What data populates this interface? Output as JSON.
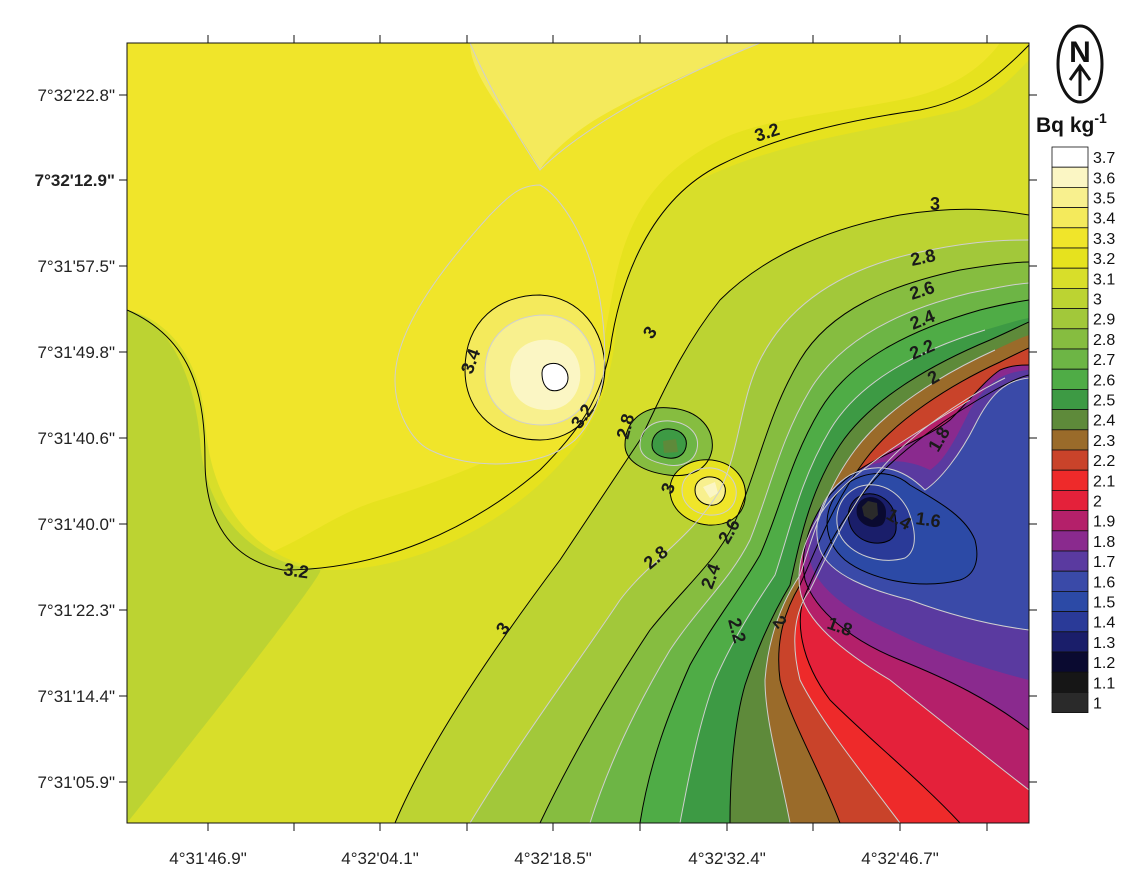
{
  "chart_data": {
    "type": "contour",
    "unit_label": "Bq kg",
    "unit_superscript": "-1",
    "north_arrow": "N",
    "x_tick_labels": [
      "4°31'46.9\"",
      "4°32'04.1\"",
      "4°32'18.5\"",
      "4°32'32.4\"",
      "4°32'46.7\""
    ],
    "y_tick_labels": [
      "7°32'22.8\"",
      "7°32'12.9\"",
      "7°31'57.5\"",
      "7°31'49.8\"",
      "7°31'40.6\"",
      "7°31'40.0\"",
      "7°31'22.3\"",
      "7°31'14.4\"",
      "7°31'05.9\""
    ],
    "legend": [
      {
        "value": "3.7",
        "color": "#ffffff"
      },
      {
        "value": "3.6",
        "color": "#fbf6c4"
      },
      {
        "value": "3.5",
        "color": "#f8f08e"
      },
      {
        "value": "3.4",
        "color": "#f4ea5c"
      },
      {
        "value": "3.3",
        "color": "#f0e52a"
      },
      {
        "value": "3.2",
        "color": "#e6e21e"
      },
      {
        "value": "3.1",
        "color": "#d8de2a"
      },
      {
        "value": "3",
        "color": "#bcd332"
      },
      {
        "value": "2.9",
        "color": "#a2c83a"
      },
      {
        "value": "2.8",
        "color": "#86bd40"
      },
      {
        "value": "2.7",
        "color": "#6db545"
      },
      {
        "value": "2.6",
        "color": "#4fac46"
      },
      {
        "value": "2.5",
        "color": "#3d9a44"
      },
      {
        "value": "2.4",
        "color": "#5e8a3a"
      },
      {
        "value": "2.3",
        "color": "#9a6b2a"
      },
      {
        "value": "2.2",
        "color": "#c9432a"
      },
      {
        "value": "2.1",
        "color": "#ee2a2a"
      },
      {
        "value": "2",
        "color": "#e4213a"
      },
      {
        "value": "1.9",
        "color": "#b4206a"
      },
      {
        "value": "1.8",
        "color": "#8a2a8e"
      },
      {
        "value": "1.7",
        "color": "#5a3aa0"
      },
      {
        "value": "1.6",
        "color": "#3a4aa8"
      },
      {
        "value": "1.5",
        "color": "#2c4aa6"
      },
      {
        "value": "1.4",
        "color": "#2a3a98"
      },
      {
        "value": "1.3",
        "color": "#1a1e6a"
      },
      {
        "value": "1.2",
        "color": "#0a0a30"
      },
      {
        "value": "1.1",
        "color": "#161616"
      },
      {
        "value": "1",
        "color": "#2a2a2a"
      }
    ],
    "contour_labels": [
      "3.2",
      "3",
      "2.8",
      "2.6",
      "2.4",
      "2.2",
      "2",
      "1.8",
      "3.4",
      "3.2",
      "3",
      "2.8",
      "3",
      "2.6",
      "2.8",
      "2.4",
      "2.2",
      "2",
      "1.8",
      "1.6",
      "1.4",
      "3.2",
      "3"
    ]
  }
}
